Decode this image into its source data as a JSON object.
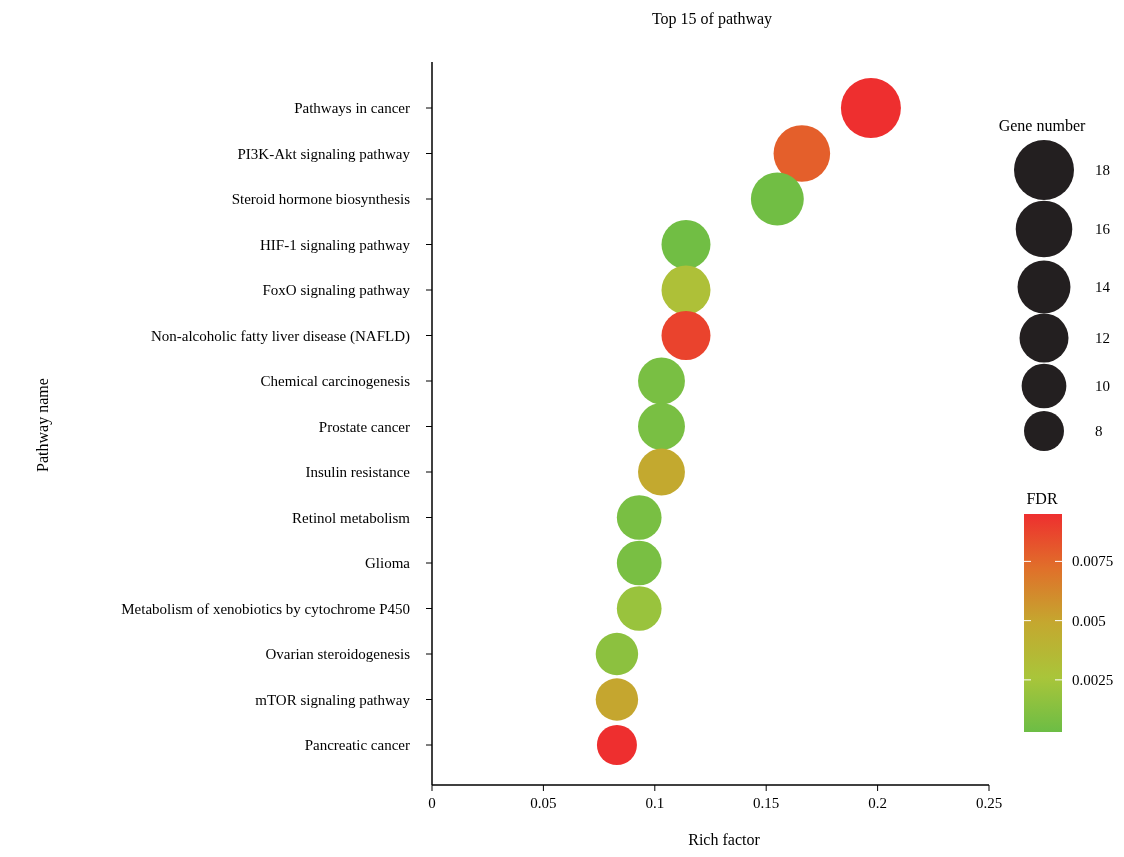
{
  "chart_data": {
    "type": "bubble",
    "title": "Top 15 of pathway",
    "xlabel": "Rich factor",
    "ylabel": "Pathway name",
    "legend_title": "Gene number",
    "clabel": "FDR",
    "categories": [
      "Pathways in cancer",
      "PI3K-Akt signaling pathway",
      "Steroid hormone biosynthesis",
      "HIF-1 signaling pathway",
      "FoxO signaling pathway",
      "Non-alcoholic fatty liver disease (NAFLD)",
      "Chemical carcinogenesis",
      "Prostate cancer",
      "Insulin resistance",
      "Retinol metabolism",
      "Glioma",
      "Metabolism of xenobiotics by cytochrome P450",
      "Ovarian steroidogenesis",
      "mTOR signaling pathway",
      "Pancreatic cancer"
    ],
    "orientation": "horizontal",
    "values": [
      0.197,
      0.166,
      0.155,
      0.114,
      0.114,
      0.114,
      0.103,
      0.103,
      0.103,
      0.093,
      0.093,
      0.093,
      0.083,
      0.083,
      0.083
    ],
    "sizes": [
      18,
      16,
      14,
      12,
      12,
      12,
      11,
      11,
      11,
      10,
      10,
      10,
      9,
      9,
      8
    ],
    "cvalues": [
      0.0095,
      0.0078,
      0.0005,
      0.0005,
      0.003,
      0.0088,
      0.0008,
      0.0008,
      0.0048,
      0.0008,
      0.0008,
      0.002,
      0.0015,
      0.005,
      0.0095
    ],
    "size_legend": [
      18,
      16,
      14,
      12,
      10,
      8
    ],
    "xlim": [
      0,
      0.25
    ],
    "xticks": [
      0,
      0.05,
      0.1,
      0.15,
      0.2,
      0.25
    ],
    "clim": [
      0.0003,
      0.0095
    ],
    "cticks": [
      0.0025,
      0.005,
      0.0075
    ],
    "marker": "circle",
    "grid": false
  }
}
